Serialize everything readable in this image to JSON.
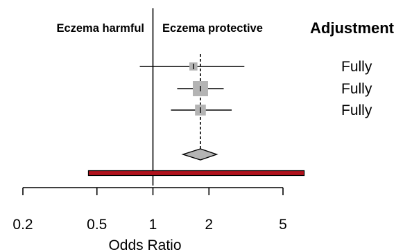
{
  "chart_data": {
    "type": "forest",
    "header_left": "Eczema harmful",
    "header_right": "Eczema protective",
    "column_header": "Adjustment",
    "xlabel": "Odds Ratio",
    "x_scale": "log",
    "xlim": [
      0.2,
      5
    ],
    "x_ticks": [
      0.2,
      0.5,
      1,
      2,
      5
    ],
    "x_tick_labels": [
      "0.2",
      "0.5",
      "1",
      "2",
      "5"
    ],
    "null_line": 1,
    "pooled_line": 1.8,
    "studies": [
      {
        "estimate": 1.65,
        "lower": 0.85,
        "upper": 3.1,
        "weight": 0.35,
        "adjustment": "Fully"
      },
      {
        "estimate": 1.8,
        "lower": 1.35,
        "upper": 2.4,
        "weight": 1.0,
        "adjustment": "Fully"
      },
      {
        "estimate": 1.8,
        "lower": 1.25,
        "upper": 2.65,
        "weight": 0.6,
        "adjustment": "Fully"
      }
    ],
    "pooled": {
      "estimate": 1.8,
      "lower": 1.45,
      "upper": 2.2
    },
    "prediction_interval": {
      "lower": 0.45,
      "upper": 6.5
    },
    "colors": {
      "box": "#b4b4b4",
      "diamond": "#b4b4b4",
      "prediction_bar": "#b0121c",
      "lines": "#000000"
    }
  }
}
